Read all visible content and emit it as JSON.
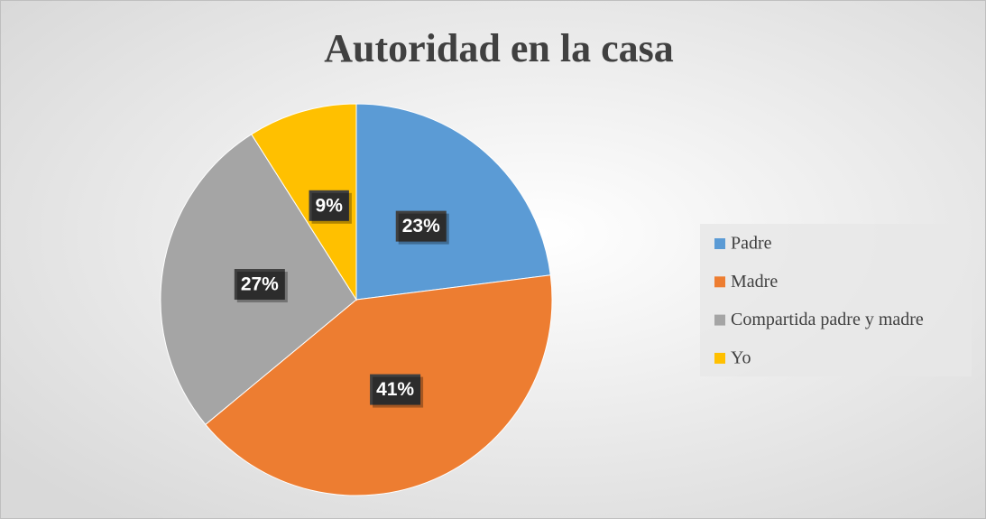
{
  "chart_data": {
    "type": "pie",
    "title": "Autoridad en la casa",
    "categories": [
      "Padre",
      "Madre",
      "Compartida padre y madre",
      "Yo"
    ],
    "values": [
      23,
      41,
      27,
      9
    ],
    "value_labels": [
      "23%",
      "41%",
      "27%",
      "9%"
    ],
    "colors": [
      "#5b9bd5",
      "#ed7d31",
      "#a5a5a5",
      "#ffc000"
    ],
    "legend": "right"
  }
}
